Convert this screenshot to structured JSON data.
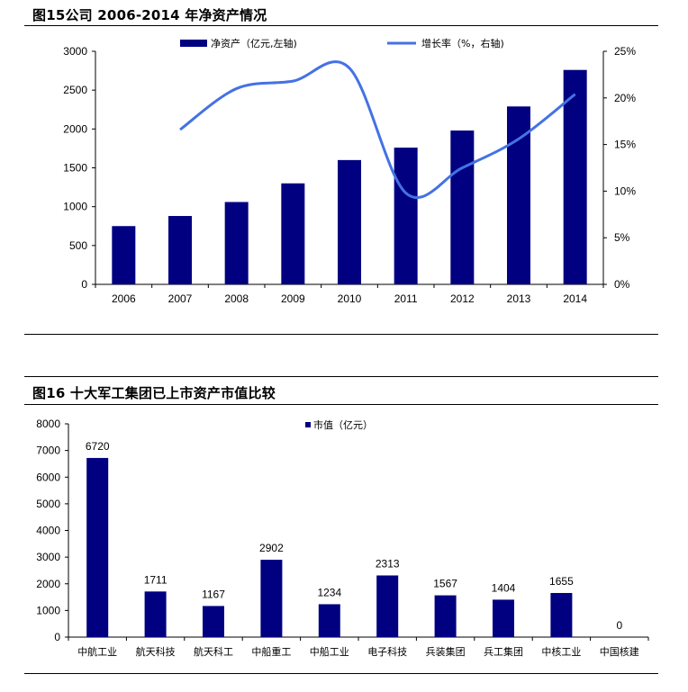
{
  "chart_data": [
    {
      "type": "bar",
      "title": "图15公司 2006-2014 年净资产情况",
      "categories": [
        "2006",
        "2007",
        "2008",
        "2009",
        "2010",
        "2011",
        "2012",
        "2013",
        "2014"
      ],
      "y_left_ticks": [
        "0",
        "500",
        "1000",
        "1500",
        "2000",
        "2500",
        "3000"
      ],
      "y_right_ticks": [
        "0%",
        "5%",
        "10%",
        "15%",
        "20%",
        "25%"
      ],
      "ylim_left": [
        0,
        3000
      ],
      "ylim_right": [
        0,
        25
      ],
      "series": [
        {
          "name": "净资产（亿元,左轴)",
          "kind": "bar",
          "axis": "left",
          "values": [
            750,
            880,
            1060,
            1300,
            1600,
            1760,
            1980,
            2290,
            2760
          ],
          "color": "#000080"
        },
        {
          "name": "增长率（%，右轴)",
          "kind": "line",
          "axis": "right",
          "values": [
            null,
            16.6,
            21.0,
            21.8,
            23.2,
            9.8,
            12.5,
            15.6,
            20.4
          ],
          "color": "#4472E4"
        }
      ],
      "grid": false,
      "legend": "top"
    },
    {
      "type": "bar",
      "title": "图16 十大军工集团已上市资产市值比较",
      "categories": [
        "中航工业",
        "航天科技",
        "航天科工",
        "中船重工",
        "中船工业",
        "电子科技",
        "兵装集团",
        "兵工集团",
        "中核工业",
        "中国核建"
      ],
      "y_ticks": [
        "0",
        "1000",
        "2000",
        "3000",
        "4000",
        "5000",
        "6000",
        "7000",
        "8000"
      ],
      "ylim": [
        0,
        8000
      ],
      "series": [
        {
          "name": "市值（亿元）",
          "values": [
            6720,
            1711,
            1167,
            2902,
            1234,
            2313,
            1567,
            1404,
            1655,
            0
          ],
          "color": "#000080"
        }
      ],
      "data_labels": [
        "6720",
        "1711",
        "1167",
        "2902",
        "1234",
        "2313",
        "1567",
        "1404",
        "1655",
        "0"
      ],
      "grid": false,
      "legend": "top"
    }
  ]
}
